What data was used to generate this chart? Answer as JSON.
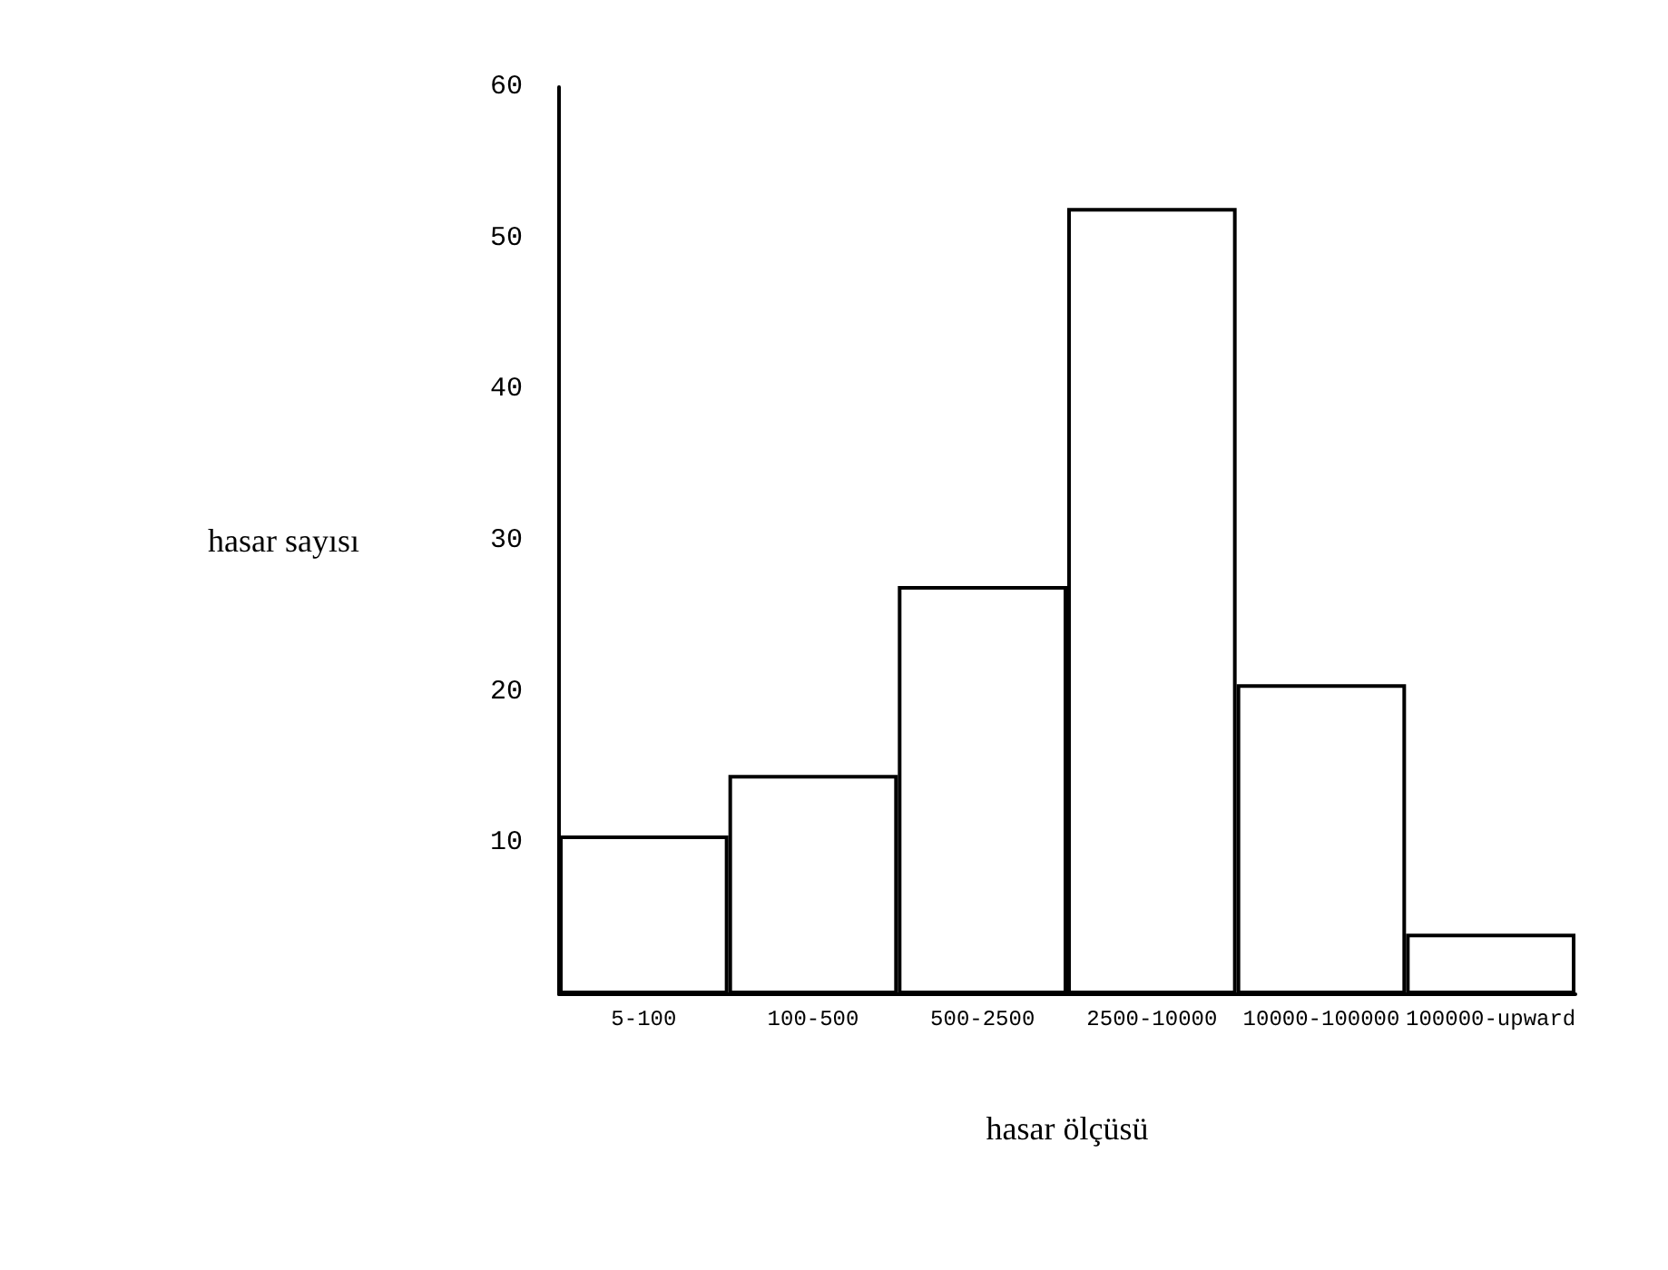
{
  "chart_data": {
    "type": "bar",
    "xlabel": "hasar ölçüsü",
    "ylabel": "hasar sayısı",
    "categories": [
      "5-100",
      "100-500",
      "500-2500",
      "2500-10000",
      "10000-100000",
      "100000-upward"
    ],
    "values": [
      10.5,
      14.5,
      27,
      52,
      20.5,
      4
    ],
    "color": "#000000",
    "ylim": [
      0,
      60
    ],
    "yticks": [
      10,
      20,
      30,
      40,
      50,
      60
    ],
    "grid": false
  }
}
